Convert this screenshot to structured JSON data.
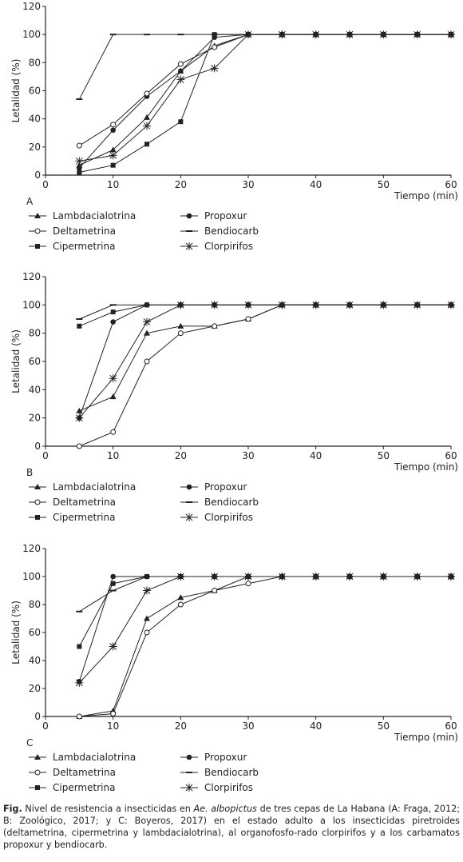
{
  "caption": {
    "lead": "Fig.",
    "part1": " Nivel de resistencia a insecticidas en ",
    "species": "Ae. albopictus",
    "part2": "  de tres cepas de La Habana (A: Fraga, 2012; B: Zoológico, 2017; y C: Boyeros, 2017) en el estado adulto a los insecticidas piretroides (deltametrina, cipermetrina y lambdacialotrina), al organofosfo-rado clorpirifos y a los carbamatos propoxur y bendiocarb."
  },
  "colors": {
    "line": "#222222"
  },
  "chart_data": [
    {
      "type": "line",
      "panel_label": "A",
      "xlabel": "Tiempo (min)",
      "ylabel": "Letalidad (%)",
      "xlim": [
        0,
        60
      ],
      "ylim": [
        0,
        120
      ],
      "xticks": [
        0,
        10,
        20,
        30,
        40,
        50,
        60
      ],
      "yticks": [
        0,
        20,
        40,
        60,
        80,
        100,
        120
      ],
      "grid": false,
      "legend_placement": "below",
      "series": [
        {
          "name": "Lambdacialotrina",
          "marker": "triangle",
          "x": [
            5,
            10,
            15,
            20,
            25,
            30,
            35,
            40,
            45,
            50,
            55,
            60
          ],
          "y": [
            7,
            18,
            41,
            74,
            92,
            100,
            100,
            100,
            100,
            100,
            100,
            100
          ]
        },
        {
          "name": "Propoxur",
          "marker": "circle",
          "x": [
            5,
            10,
            15,
            20,
            25,
            30,
            35,
            40,
            45,
            50,
            55,
            60
          ],
          "y": [
            5,
            32,
            56,
            74,
            98,
            100,
            100,
            100,
            100,
            100,
            100,
            100
          ]
        },
        {
          "name": "Deltametrina",
          "marker": "open-circle",
          "x": [
            5,
            10,
            15,
            20,
            25,
            30,
            35,
            40,
            45,
            50,
            55,
            60
          ],
          "y": [
            21,
            36,
            58,
            79,
            91,
            100,
            100,
            100,
            100,
            100,
            100,
            100
          ]
        },
        {
          "name": "Bendiocarb",
          "marker": "dash",
          "x": [
            5,
            10,
            15,
            20,
            25,
            30,
            35,
            40,
            45,
            50,
            55,
            60
          ],
          "y": [
            54,
            100,
            100,
            100,
            100,
            100,
            100,
            100,
            100,
            100,
            100,
            100
          ]
        },
        {
          "name": "Cipermetrina",
          "marker": "square",
          "x": [
            5,
            10,
            15,
            20,
            25,
            30,
            35,
            40,
            45,
            50,
            55,
            60
          ],
          "y": [
            2,
            7,
            22,
            38,
            100,
            100,
            100,
            100,
            100,
            100,
            100,
            100
          ]
        },
        {
          "name": "Clorpirifos",
          "marker": "star",
          "x": [
            5,
            10,
            15,
            20,
            25,
            30,
            35,
            40,
            45,
            50,
            55,
            60
          ],
          "y": [
            10,
            14,
            35,
            68,
            76,
            100,
            100,
            100,
            100,
            100,
            100,
            100
          ]
        }
      ]
    },
    {
      "type": "line",
      "panel_label": "B",
      "xlabel": "Tiempo (min)",
      "ylabel": "Letalidad (%)",
      "xlim": [
        0,
        60
      ],
      "ylim": [
        0,
        120
      ],
      "xticks": [
        0,
        10,
        20,
        30,
        40,
        50,
        60
      ],
      "yticks": [
        0,
        20,
        40,
        60,
        80,
        100,
        120
      ],
      "grid": false,
      "legend_placement": "below",
      "series": [
        {
          "name": "Lambdacialotrina",
          "marker": "triangle",
          "x": [
            5,
            10,
            15,
            20,
            25,
            30,
            35,
            40,
            45,
            50,
            55,
            60
          ],
          "y": [
            25,
            35,
            80,
            85,
            85,
            90,
            100,
            100,
            100,
            100,
            100,
            100
          ]
        },
        {
          "name": "Propoxur",
          "marker": "circle",
          "x": [
            5,
            10,
            15,
            20,
            25,
            30,
            35,
            40,
            45,
            50,
            55,
            60
          ],
          "y": [
            20,
            88,
            100,
            100,
            100,
            100,
            100,
            100,
            100,
            100,
            100,
            100
          ]
        },
        {
          "name": "Deltametrina",
          "marker": "open-circle",
          "x": [
            5,
            10,
            15,
            20,
            25,
            30,
            35,
            40,
            45,
            50,
            55,
            60
          ],
          "y": [
            0,
            10,
            60,
            80,
            85,
            90,
            100,
            100,
            100,
            100,
            100,
            100
          ]
        },
        {
          "name": "Bendiocarb",
          "marker": "dash",
          "x": [
            5,
            10,
            15,
            20,
            25,
            30,
            35,
            40,
            45,
            50,
            55,
            60
          ],
          "y": [
            90,
            100,
            100,
            100,
            100,
            100,
            100,
            100,
            100,
            100,
            100,
            100
          ]
        },
        {
          "name": "Cipermetrina",
          "marker": "square",
          "x": [
            5,
            10,
            15,
            20,
            25,
            30,
            35,
            40,
            45,
            50,
            55,
            60
          ],
          "y": [
            85,
            95,
            100,
            100,
            100,
            100,
            100,
            100,
            100,
            100,
            100,
            100
          ]
        },
        {
          "name": "Clorpirifos",
          "marker": "star",
          "x": [
            5,
            10,
            15,
            20,
            25,
            30,
            35,
            40,
            45,
            50,
            55,
            60
          ],
          "y": [
            20,
            48,
            88,
            100,
            100,
            100,
            100,
            100,
            100,
            100,
            100,
            100
          ]
        }
      ]
    },
    {
      "type": "line",
      "panel_label": "C",
      "xlabel": "Tiempo (min)",
      "ylabel": "Letalidad (%)",
      "xlim": [
        0,
        60
      ],
      "ylim": [
        0,
        120
      ],
      "xticks": [
        0,
        10,
        20,
        30,
        40,
        50,
        60
      ],
      "yticks": [
        0,
        20,
        40,
        60,
        80,
        100,
        120
      ],
      "grid": false,
      "legend_placement": "below",
      "series": [
        {
          "name": "Lambdacialotrina",
          "marker": "triangle",
          "x": [
            5,
            10,
            15,
            20,
            25,
            30,
            35,
            40,
            45,
            50,
            55,
            60
          ],
          "y": [
            0,
            4,
            70,
            85,
            90,
            100,
            100,
            100,
            100,
            100,
            100,
            100
          ]
        },
        {
          "name": "Propoxur",
          "marker": "circle",
          "x": [
            5,
            10,
            15,
            20,
            25,
            30,
            35,
            40,
            45,
            50,
            55,
            60
          ],
          "y": [
            25,
            100,
            100,
            100,
            100,
            100,
            100,
            100,
            100,
            100,
            100,
            100
          ]
        },
        {
          "name": "Deltametrina",
          "marker": "open-circle",
          "x": [
            5,
            10,
            15,
            20,
            25,
            30,
            35,
            40,
            45,
            50,
            55,
            60
          ],
          "y": [
            0,
            2,
            60,
            80,
            90,
            95,
            100,
            100,
            100,
            100,
            100,
            100
          ]
        },
        {
          "name": "Bendiocarb",
          "marker": "dash",
          "x": [
            5,
            10,
            15,
            20,
            25,
            30,
            35,
            40,
            45,
            50,
            55,
            60
          ],
          "y": [
            75,
            90,
            100,
            100,
            100,
            100,
            100,
            100,
            100,
            100,
            100,
            100
          ]
        },
        {
          "name": "Cipermetrina",
          "marker": "square",
          "x": [
            5,
            10,
            15,
            20,
            25,
            30,
            35,
            40,
            45,
            50,
            55,
            60
          ],
          "y": [
            50,
            95,
            100,
            100,
            100,
            100,
            100,
            100,
            100,
            100,
            100,
            100
          ]
        },
        {
          "name": "Clorpirifos",
          "marker": "star",
          "x": [
            5,
            10,
            15,
            20,
            25,
            30,
            35,
            40,
            45,
            50,
            55,
            60
          ],
          "y": [
            24,
            50,
            90,
            100,
            100,
            100,
            100,
            100,
            100,
            100,
            100,
            100
          ]
        }
      ]
    }
  ]
}
